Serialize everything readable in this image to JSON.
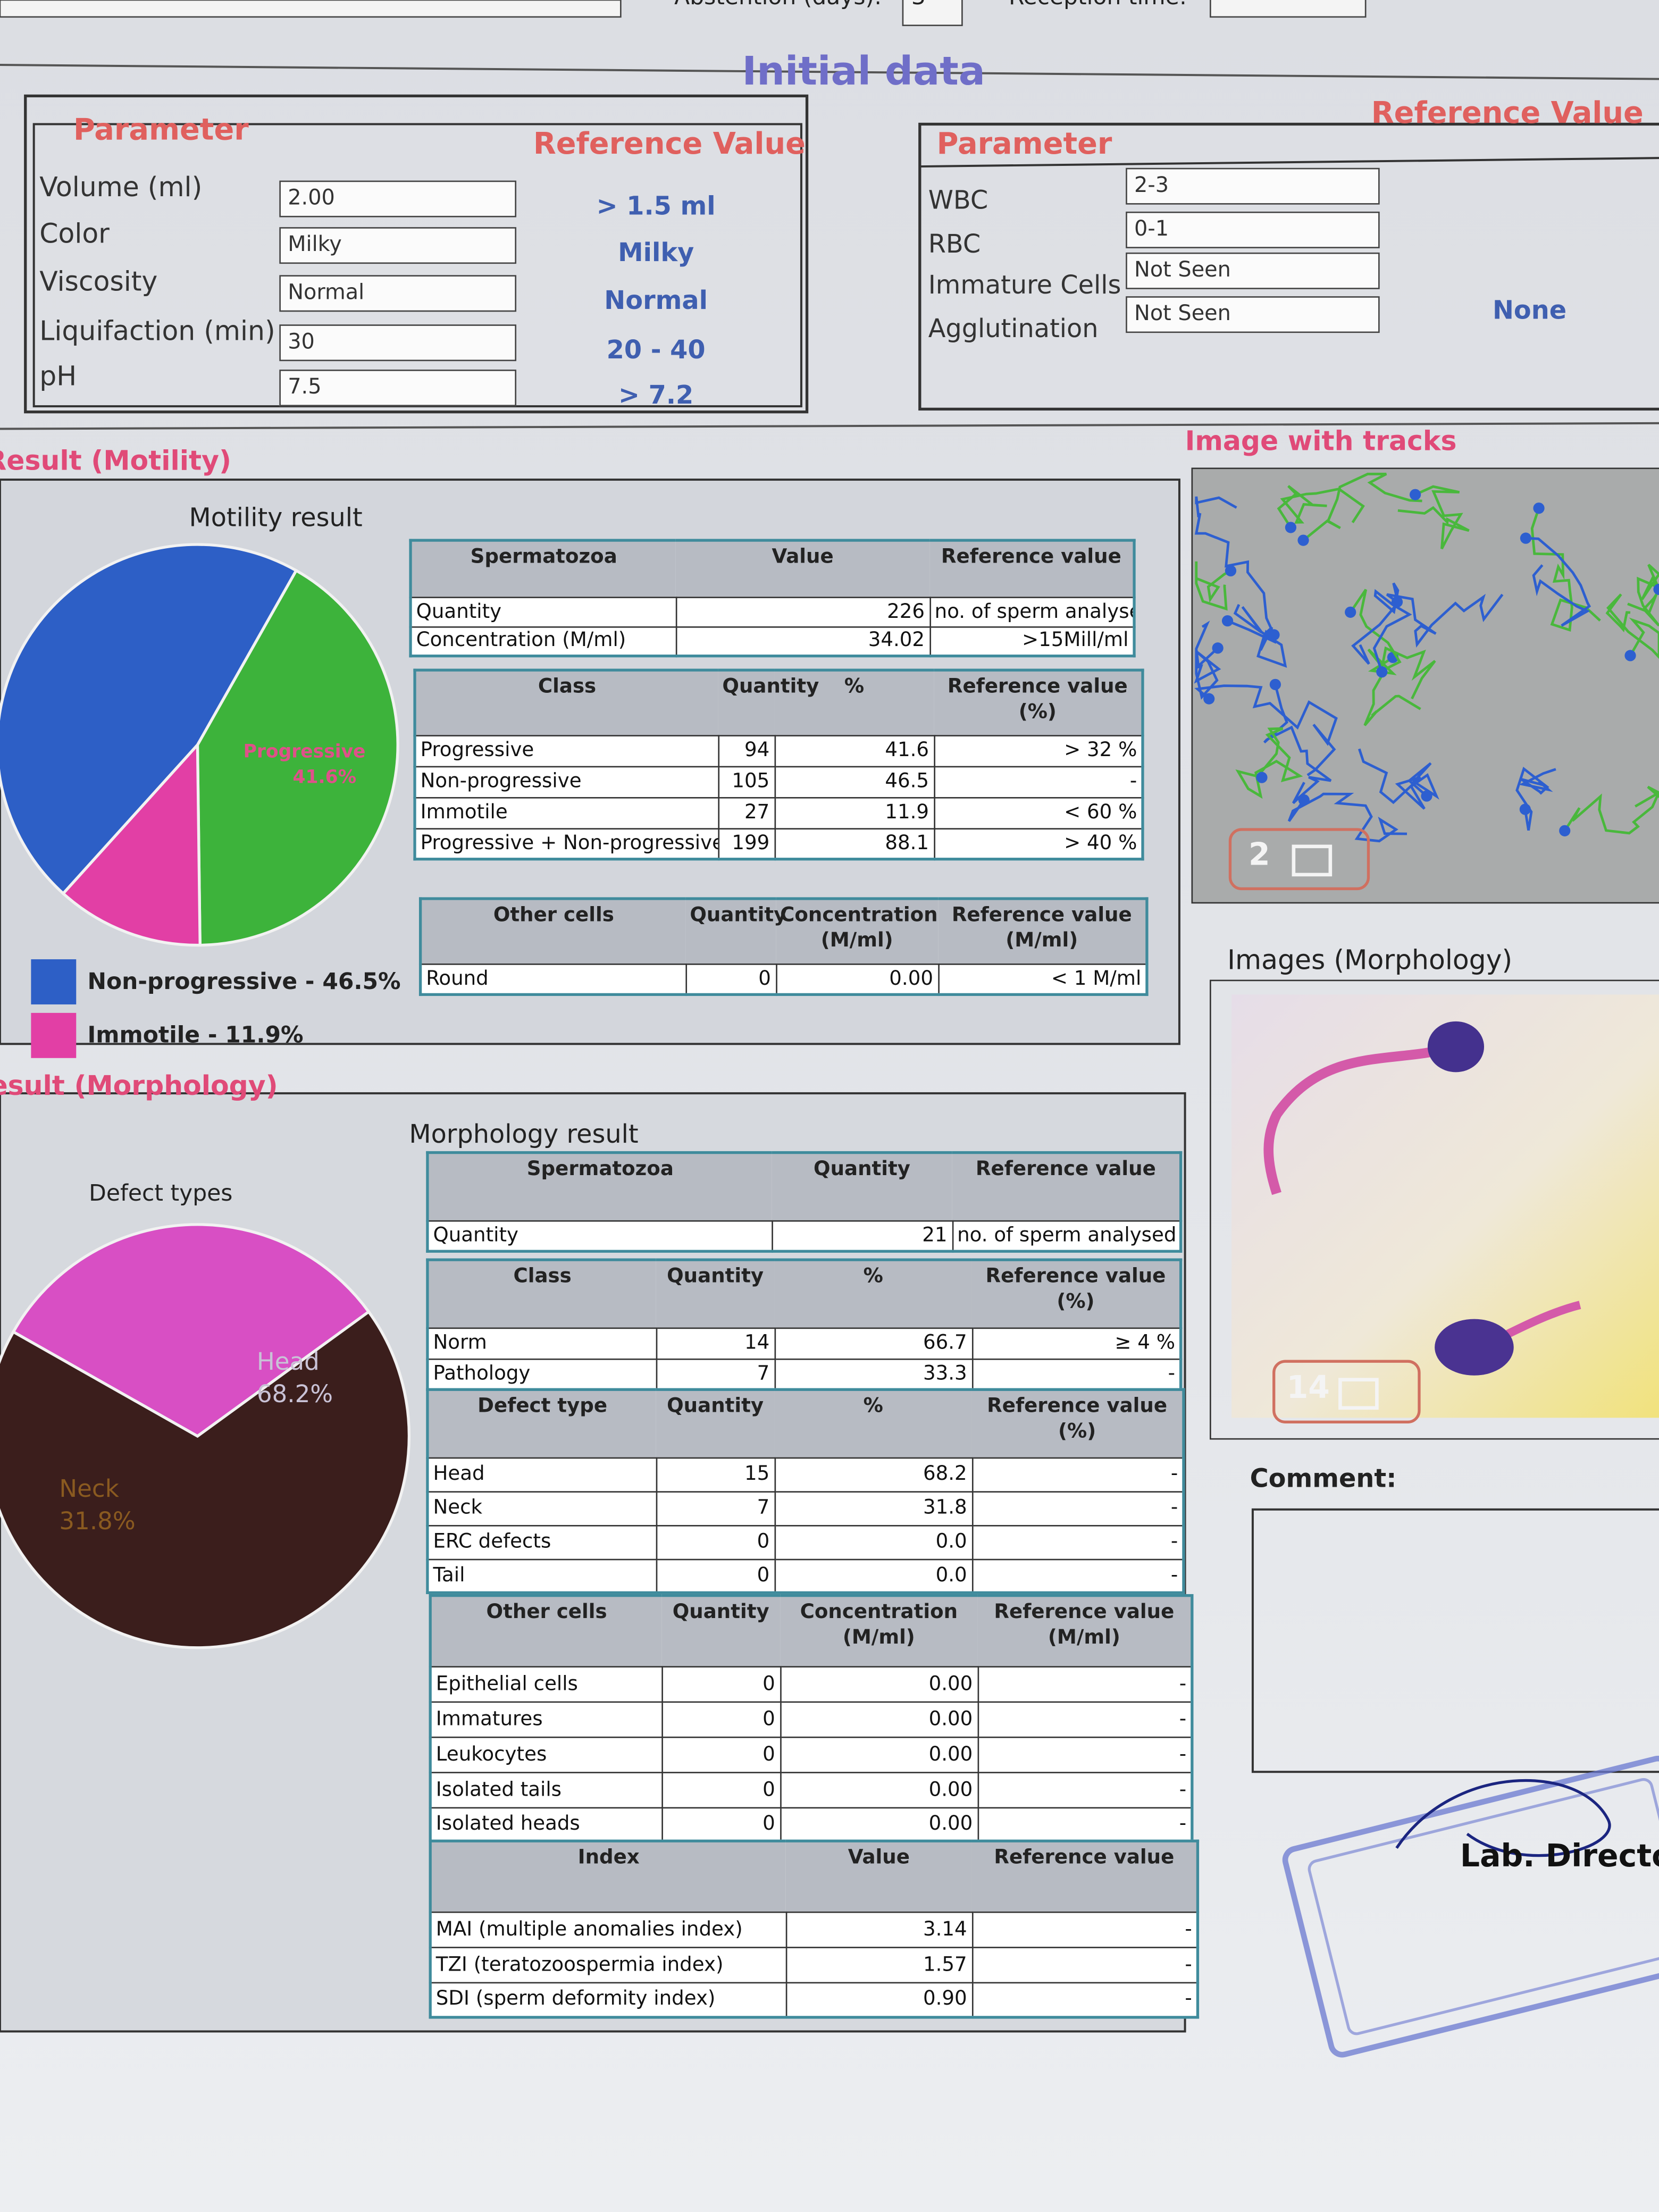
{
  "top_bar": {
    "abstention_label": "Abstention (days):",
    "abstention_value": "3",
    "reception_label": "Reception time:"
  },
  "initial_data": {
    "title": "Initial data",
    "left": {
      "parameter_header": "Parameter",
      "reference_header": "Reference Value",
      "rows": [
        {
          "parameter": "Volume (ml)",
          "value": "2.00",
          "reference": "> 1.5 ml"
        },
        {
          "parameter": "Color",
          "value": "Milky",
          "reference": "Milky"
        },
        {
          "parameter": "Viscosity",
          "value": "Normal",
          "reference": "Normal"
        },
        {
          "parameter": "Liquifaction (min)",
          "value": "30",
          "reference": "20 - 40"
        },
        {
          "parameter": "pH",
          "value": "7.5",
          "reference": "> 7.2"
        }
      ]
    },
    "right": {
      "parameter_header": "Parameter",
      "reference_header": "Reference Value",
      "rows": [
        {
          "parameter": "WBC",
          "value": "2-3"
        },
        {
          "parameter": "RBC",
          "value": "0-1"
        },
        {
          "parameter": "Immature Cells",
          "value": "Not Seen"
        },
        {
          "parameter": "Agglutination",
          "value": "Not Seen"
        }
      ],
      "reference": "None"
    }
  },
  "motility": {
    "section_title": "Result (Motility)",
    "chart": {
      "type": "pie",
      "title": "Motility result",
      "slices": [
        {
          "name": "Progressive",
          "value": 41.6,
          "color": "#3db33b"
        },
        {
          "name": "Immotile",
          "value": 11.9,
          "color": "#e23fa5"
        },
        {
          "name": "Non-progressive",
          "value": 46.5,
          "color": "#2d5fc6"
        }
      ],
      "value_labels": [
        "41.6%",
        null,
        null
      ],
      "legend": [
        {
          "text": "Non-progressive - 46.5%",
          "color": "#2d5fc6"
        },
        {
          "text": "Immotile - 11.9%",
          "color": "#e23fa5"
        }
      ]
    },
    "tables": [
      {
        "columns": [
          "Spermatozoa",
          "Value",
          "Reference value"
        ],
        "rows": [
          [
            "Quantity",
            "226",
            "no. of sperm analysed"
          ],
          [
            "Concentration (M/ml)",
            "34.02",
            ">15Mill/ml"
          ]
        ]
      },
      {
        "columns": [
          "Class",
          "Quantity",
          "%",
          "Reference value (%)"
        ],
        "rows": [
          [
            "Progressive",
            "94",
            "41.6",
            "> 32 %"
          ],
          [
            "Non-progressive",
            "105",
            "46.5",
            "-"
          ],
          [
            "Immotile",
            "27",
            "11.9",
            "< 60 %"
          ],
          [
            "Progressive + Non-progressive",
            "199",
            "88.1",
            "> 40 %"
          ]
        ]
      },
      {
        "columns": [
          "Other cells",
          "Quantity",
          "Concentration (M/ml)",
          "Reference value (M/ml)"
        ],
        "rows": [
          [
            "Round",
            "0",
            "0.00",
            "< 1 M/ml"
          ]
        ]
      }
    ]
  },
  "tracks_image": {
    "title": "Image with tracks",
    "badge": "2"
  },
  "morphology": {
    "section_title": "Result (Morphology)",
    "table_title": "Morphology result",
    "chart": {
      "type": "pie",
      "title": "Defect types",
      "slices": [
        {
          "name": "Head",
          "value": 68.2,
          "color": "#3b1e1c"
        },
        {
          "name": "Neck",
          "value": 31.8,
          "color": "#d84fc4"
        }
      ],
      "value_labels": [
        "68.2%",
        "31.8%"
      ]
    },
    "tables": [
      {
        "columns": [
          "Spermatozoa",
          "Quantity",
          "Reference value"
        ],
        "rows": [
          [
            "Quantity",
            "21",
            "no. of sperm analysed"
          ]
        ]
      },
      {
        "columns": [
          "Class",
          "Quantity",
          "%",
          "Reference value (%)"
        ],
        "rows": [
          [
            "Norm",
            "14",
            "66.7",
            "≥ 4 %"
          ],
          [
            "Pathology",
            "7",
            "33.3",
            "-"
          ]
        ]
      },
      {
        "columns": [
          "Defect type",
          "Quantity",
          "%",
          "Reference value (%)"
        ],
        "rows": [
          [
            "Head",
            "15",
            "68.2",
            "-"
          ],
          [
            "Neck",
            "7",
            "31.8",
            "-"
          ],
          [
            "ERC defects",
            "0",
            "0.0",
            "-"
          ],
          [
            "Tail",
            "0",
            "0.0",
            "-"
          ]
        ]
      },
      {
        "columns": [
          "Other cells",
          "Quantity",
          "Concentration (M/ml)",
          "Reference value (M/ml)"
        ],
        "rows": [
          [
            "Epithelial cells",
            "0",
            "0.00",
            "-"
          ],
          [
            "Immatures",
            "0",
            "0.00",
            "-"
          ],
          [
            "Leukocytes",
            "0",
            "0.00",
            "-"
          ],
          [
            "Isolated tails",
            "0",
            "0.00",
            "-"
          ],
          [
            "Isolated heads",
            "0",
            "0.00",
            "-"
          ]
        ]
      },
      {
        "columns": [
          "Index",
          "Value",
          "Reference value"
        ],
        "rows": [
          [
            "MAI (multiple anomalies index)",
            "3.14",
            "-"
          ],
          [
            "TZI (teratozoospermia index)",
            "1.57",
            "-"
          ],
          [
            "SDI (sperm deformity index)",
            "0.90",
            "-"
          ]
        ]
      }
    ]
  },
  "morphology_images": {
    "title": "Images (Morphology)",
    "badge": "14"
  },
  "comment": {
    "label": "Comment:"
  },
  "signature": {
    "label": "Lab. Director"
  }
}
